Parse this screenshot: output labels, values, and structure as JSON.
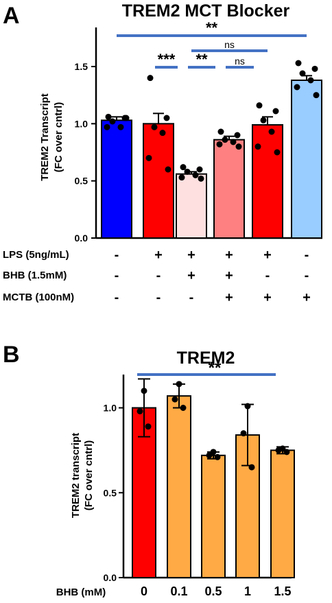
{
  "chart_data": [
    {
      "panel_label": "A",
      "type": "bar",
      "title": "TREM2 MCT  Blocker",
      "ylabel_line1": "TREM2 Transcript",
      "ylabel_line2": "(FC over cntrl)",
      "ylim": [
        0,
        1.8
      ],
      "yticks": [
        "0.0",
        "0.5",
        "1.0",
        "1.5"
      ],
      "ytick_values": [
        0,
        0.5,
        1.0,
        1.5
      ],
      "bars": [
        {
          "value": 1.03,
          "sem": 0.03,
          "color": "#0000ff",
          "points": [
            1.06,
            1.05,
            1.02,
            0.97,
            0.97,
            1.05
          ]
        },
        {
          "value": 1.0,
          "sem": 0.09,
          "color": "#ff0000",
          "points": [
            1.4,
            1.05,
            0.97,
            0.92,
            0.7,
            0.6
          ]
        },
        {
          "value": 0.56,
          "sem": 0.02,
          "color": "#ffe0e0",
          "points": [
            0.62,
            0.6,
            0.58,
            0.55,
            0.53,
            0.52
          ]
        },
        {
          "value": 0.86,
          "sem": 0.03,
          "color": "#ff8080",
          "points": [
            0.93,
            0.9,
            0.86,
            0.84,
            0.82,
            0.8
          ]
        },
        {
          "value": 0.99,
          "sem": 0.07,
          "color": "#ff0000",
          "points": [
            1.16,
            1.11,
            1.03,
            0.93,
            0.8,
            0.75
          ]
        },
        {
          "value": 1.38,
          "sem": 0.04,
          "color": "#99ccff",
          "points": [
            1.53,
            1.48,
            1.44,
            1.38,
            1.32,
            1.25
          ]
        }
      ],
      "significance": [
        {
          "from": 0,
          "to": 5,
          "label": "**"
        },
        {
          "from": 2,
          "to": 4,
          "label": "ns"
        },
        {
          "from": 1,
          "to": 2,
          "label": "***"
        },
        {
          "from": 2,
          "to": 3,
          "label": "**"
        },
        {
          "from": 3,
          "to": 4,
          "label": "ns"
        }
      ],
      "conditions": [
        {
          "label": "LPS (5ng/mL)",
          "values": [
            "-",
            "+",
            "+",
            "+",
            "+",
            "-"
          ]
        },
        {
          "label": "BHB (1.5mM)",
          "values": [
            "-",
            "-",
            "+",
            "+",
            "-",
            "-"
          ]
        },
        {
          "label": "MCTB (100nM)",
          "values": [
            "-",
            "-",
            "-",
            "+",
            "+",
            "+"
          ]
        }
      ]
    },
    {
      "panel_label": "B",
      "type": "bar",
      "title": "TREM2",
      "ylabel_line1": "TREM2 transcript",
      "ylabel_line2": "(FC over cntrl)",
      "xlabel": "BHB (mM)",
      "ylim": [
        0,
        1.2
      ],
      "yticks": [
        "0.0",
        "0.5",
        "1.0"
      ],
      "ytick_values": [
        0,
        0.5,
        1.0
      ],
      "categories": [
        "0",
        "0.1",
        "0.5",
        "1",
        "1.5"
      ],
      "bars": [
        {
          "value": 1.0,
          "sd": 0.17,
          "color": "#ff0000",
          "points": [
            1.1,
            0.98,
            0.89
          ]
        },
        {
          "value": 1.07,
          "sd": 0.07,
          "color": "#ffaa44",
          "points": [
            1.14,
            1.05,
            1.0
          ]
        },
        {
          "value": 0.72,
          "sd": 0.02,
          "color": "#ffaa44",
          "points": [
            0.74,
            0.72,
            0.71
          ]
        },
        {
          "value": 0.84,
          "sd": 0.18,
          "color": "#ffaa44",
          "points": [
            1.01,
            0.85,
            0.65
          ]
        },
        {
          "value": 0.75,
          "sd": 0.02,
          "color": "#ffaa44",
          "points": [
            0.76,
            0.75,
            0.74
          ]
        }
      ],
      "significance": [
        {
          "from": 0,
          "to": 4,
          "label": "**"
        }
      ]
    }
  ],
  "colors": {
    "significance_line": "#4472c4",
    "axis": "#000000"
  }
}
